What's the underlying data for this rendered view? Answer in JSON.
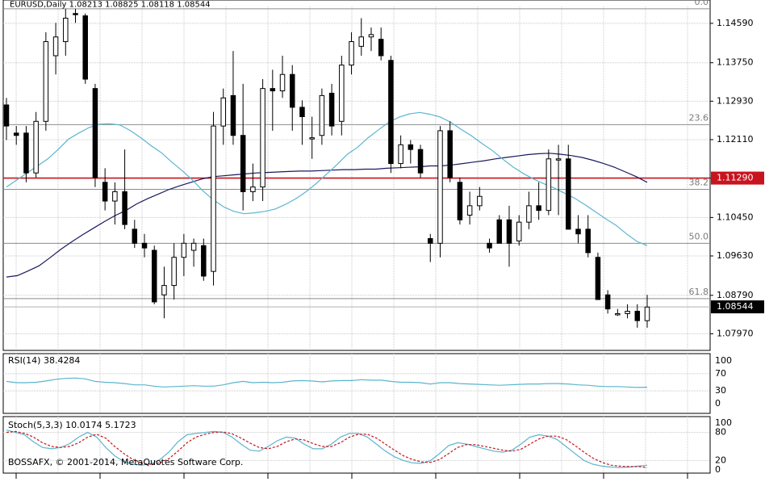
{
  "chart_data": [
    {
      "type": "candlestick",
      "title": "EURUSD,Daily 1.08213 1.08825 1.08118 1.08544",
      "price_levels": [
        "1.14590",
        "1.13750",
        "1.12930",
        "1.12110",
        "1.11290",
        "1.10450",
        "1.09630",
        "1.08790",
        "1.07970"
      ],
      "ylim": [
        1.0765,
        1.1495
      ],
      "fib_levels": [
        {
          "label": "0.0",
          "price": 1.149
        },
        {
          "label": "23.6",
          "price": 1.1243
        },
        {
          "label": "38.2",
          "price": 1.1105
        },
        {
          "label": "50.0",
          "price": 1.099
        },
        {
          "label": "61.8",
          "price": 1.0872
        }
      ],
      "highlight_level": {
        "label": "1.11290",
        "price": 1.1129,
        "color": "#c8141e"
      },
      "current_price": {
        "label": "1.08544",
        "price": 1.08544
      },
      "candles": [
        [
          1.1285,
          1.13,
          1.121,
          1.124
        ],
        [
          1.1225,
          1.124,
          1.12,
          1.122
        ],
        [
          1.1225,
          1.124,
          1.112,
          1.114
        ],
        [
          1.114,
          1.127,
          1.113,
          1.125
        ],
        [
          1.125,
          1.144,
          1.123,
          1.142
        ],
        [
          1.139,
          1.146,
          1.135,
          1.143
        ],
        [
          1.142,
          1.149,
          1.139,
          1.147
        ],
        [
          1.148,
          1.149,
          1.146,
          1.1478
        ],
        [
          1.1475,
          1.148,
          1.133,
          1.134
        ],
        [
          1.132,
          1.133,
          1.111,
          1.113
        ],
        [
          1.112,
          1.115,
          1.106,
          1.108
        ],
        [
          1.108,
          1.112,
          1.103,
          1.11
        ],
        [
          1.11,
          1.119,
          1.102,
          1.103
        ],
        [
          1.102,
          1.104,
          1.098,
          1.099
        ],
        [
          1.099,
          1.101,
          1.096,
          1.098
        ],
        [
          1.0975,
          1.0985,
          1.086,
          1.0865
        ],
        [
          1.088,
          1.094,
          1.083,
          1.09
        ],
        [
          1.09,
          1.099,
          1.087,
          1.096
        ],
        [
          1.096,
          1.101,
          1.092,
          1.099
        ],
        [
          1.0975,
          1.1,
          1.094,
          1.099
        ],
        [
          1.0985,
          1.1,
          1.091,
          1.092
        ],
        [
          1.093,
          1.127,
          1.09,
          1.124
        ],
        [
          1.124,
          1.132,
          1.12,
          1.13
        ],
        [
          1.1305,
          1.14,
          1.12,
          1.122
        ],
        [
          1.122,
          1.133,
          1.106,
          1.11
        ],
        [
          1.11,
          1.116,
          1.108,
          1.111
        ],
        [
          1.111,
          1.134,
          1.108,
          1.132
        ],
        [
          1.132,
          1.136,
          1.123,
          1.1315
        ],
        [
          1.1315,
          1.139,
          1.13,
          1.135
        ],
        [
          1.135,
          1.137,
          1.123,
          1.128
        ],
        [
          1.128,
          1.1295,
          1.12,
          1.126
        ],
        [
          1.1215,
          1.126,
          1.117,
          1.1215
        ],
        [
          1.122,
          1.132,
          1.12,
          1.1305
        ],
        [
          1.131,
          1.133,
          1.122,
          1.124
        ],
        [
          1.125,
          1.139,
          1.122,
          1.137
        ],
        [
          1.137,
          1.144,
          1.135,
          1.142
        ],
        [
          1.141,
          1.147,
          1.139,
          1.143
        ],
        [
          1.143,
          1.145,
          1.14,
          1.1435
        ],
        [
          1.1425,
          1.145,
          1.138,
          1.139
        ],
        [
          1.138,
          1.139,
          1.114,
          1.116
        ],
        [
          1.116,
          1.122,
          1.115,
          1.12
        ],
        [
          1.12,
          1.121,
          1.116,
          1.119
        ],
        [
          1.119,
          1.12,
          1.113,
          1.114
        ],
        [
          1.1,
          1.101,
          1.095,
          1.099
        ],
        [
          1.099,
          1.124,
          1.096,
          1.123
        ],
        [
          1.123,
          1.125,
          1.112,
          1.113
        ],
        [
          1.112,
          1.113,
          1.103,
          1.104
        ],
        [
          1.105,
          1.11,
          1.103,
          1.107
        ],
        [
          1.107,
          1.111,
          1.106,
          1.109
        ],
        [
          1.099,
          1.1,
          1.097,
          1.098
        ],
        [
          1.104,
          1.105,
          1.099,
          1.099
        ],
        [
          1.104,
          1.107,
          1.094,
          1.099
        ],
        [
          1.0995,
          1.105,
          1.0985,
          1.1035
        ],
        [
          1.1035,
          1.11,
          1.102,
          1.107
        ],
        [
          1.107,
          1.112,
          1.104,
          1.106
        ],
        [
          1.106,
          1.119,
          1.105,
          1.117
        ],
        [
          1.117,
          1.12,
          1.105,
          1.117
        ],
        [
          1.117,
          1.12,
          1.102,
          1.102
        ],
        [
          1.102,
          1.105,
          1.099,
          1.101
        ],
        [
          1.102,
          1.105,
          1.096,
          1.097
        ],
        [
          1.096,
          1.097,
          1.087,
          1.087
        ],
        [
          1.088,
          1.089,
          1.084,
          1.085
        ],
        [
          1.084,
          1.085,
          1.0835,
          1.084
        ],
        [
          1.084,
          1.086,
          1.083,
          1.0845
        ],
        [
          1.0845,
          1.086,
          1.081,
          1.0825
        ],
        [
          1.0825,
          1.088,
          1.081,
          1.0854
        ]
      ],
      "ma_slow": [
        1.0918,
        1.0921,
        1.0931,
        1.0942,
        1.0959,
        1.0977,
        1.0993,
        1.1008,
        1.1022,
        1.1036,
        1.1049,
        1.106,
        1.1074,
        1.1085,
        1.1095,
        1.1105,
        1.1113,
        1.112,
        1.1127,
        1.1132,
        1.1134,
        1.1136,
        1.1138,
        1.114,
        1.1141,
        1.1142,
        1.1143,
        1.1144,
        1.1144,
        1.1145,
        1.1146,
        1.1147,
        1.1147,
        1.1148,
        1.1148,
        1.115,
        1.1151,
        1.1152,
        1.1153,
        1.1155,
        1.1155,
        1.1157,
        1.116,
        1.1163,
        1.1166,
        1.117,
        1.1173,
        1.1176,
        1.1179,
        1.1181,
        1.1182,
        1.118,
        1.1177,
        1.1173,
        1.1167,
        1.116,
        1.1152,
        1.1142,
        1.1132,
        1.112
      ],
      "ma_fast": [
        1.111,
        1.1125,
        1.114,
        1.1155,
        1.117,
        1.119,
        1.1212,
        1.1225,
        1.1237,
        1.1244,
        1.1245,
        1.1242,
        1.123,
        1.1215,
        1.1198,
        1.1183,
        1.1163,
        1.1145,
        1.1125,
        1.1102,
        1.1083,
        1.1068,
        1.1058,
        1.1053,
        1.1055,
        1.1058,
        1.1063,
        1.1073,
        1.1085,
        1.11,
        1.1118,
        1.1138,
        1.1158,
        1.118,
        1.1195,
        1.1215,
        1.1232,
        1.1248,
        1.1259,
        1.1266,
        1.1269,
        1.1265,
        1.1259,
        1.1248,
        1.1233,
        1.1219,
        1.1203,
        1.1188,
        1.117,
        1.1153,
        1.1139,
        1.1127,
        1.1117,
        1.1108,
        1.1097,
        1.1086,
        1.1072,
        1.1057,
        1.1042,
        1.1028,
        1.101,
        1.0994,
        1.0985
      ]
    },
    {
      "type": "line",
      "title": "RSI(14) 38.4284",
      "levels": [
        "100",
        "70",
        "30",
        "0"
      ],
      "ylim": [
        0,
        100
      ],
      "series": [
        {
          "values": [
            52,
            49,
            49,
            50,
            53,
            57,
            59,
            60,
            58,
            52,
            50,
            49,
            47,
            44,
            44,
            41,
            39,
            40,
            41,
            42,
            41,
            41,
            44,
            49,
            52,
            49,
            50,
            49,
            50,
            53,
            54,
            53,
            51,
            53,
            54,
            54,
            56,
            55,
            55,
            52,
            50,
            50,
            49,
            46,
            49,
            49,
            47,
            46,
            45,
            44,
            43,
            44,
            45,
            46,
            46,
            47,
            47,
            46,
            44,
            43,
            41,
            40,
            40,
            39,
            38,
            38.4
          ],
          "color": "#5bb5cf"
        }
      ]
    },
    {
      "type": "line",
      "title": "Stoch(5,3,3) 10.0174 5.1723",
      "levels": [
        "100",
        "80",
        "20",
        "0"
      ],
      "ylim": [
        0,
        100
      ],
      "series": [
        {
          "values": [
            85,
            80,
            75,
            60,
            48,
            45,
            48,
            56,
            70,
            80,
            70,
            48,
            30,
            18,
            12,
            10,
            13,
            22,
            38,
            60,
            75,
            78,
            80,
            82,
            80,
            70,
            55,
            42,
            40,
            50,
            62,
            70,
            68,
            55,
            45,
            45,
            55,
            70,
            78,
            78,
            70,
            55,
            40,
            28,
            20,
            15,
            14,
            20,
            35,
            52,
            58,
            55,
            50,
            45,
            40,
            38,
            42,
            55,
            70,
            75,
            72,
            65,
            50,
            35,
            20,
            12,
            8,
            6,
            5,
            6,
            8,
            10
          ],
          "color": "#5bb5cf"
        },
        {
          "values": [
            80,
            82,
            78,
            70,
            58,
            50,
            48,
            50,
            58,
            70,
            76,
            68,
            50,
            35,
            22,
            14,
            12,
            15,
            24,
            40,
            58,
            70,
            76,
            80,
            81,
            77,
            68,
            57,
            48,
            45,
            50,
            60,
            66,
            64,
            56,
            50,
            50,
            58,
            70,
            76,
            76,
            68,
            55,
            42,
            30,
            22,
            17,
            16,
            22,
            35,
            48,
            54,
            54,
            50,
            46,
            42,
            40,
            44,
            55,
            66,
            72,
            72,
            65,
            52,
            38,
            25,
            16,
            10,
            8,
            7,
            7,
            5.2
          ],
          "color": "#c8141e",
          "dashed": true
        }
      ]
    }
  ],
  "copyright": "BOSSAFX, © 2001-2014, MetaQuotes Software Corp."
}
